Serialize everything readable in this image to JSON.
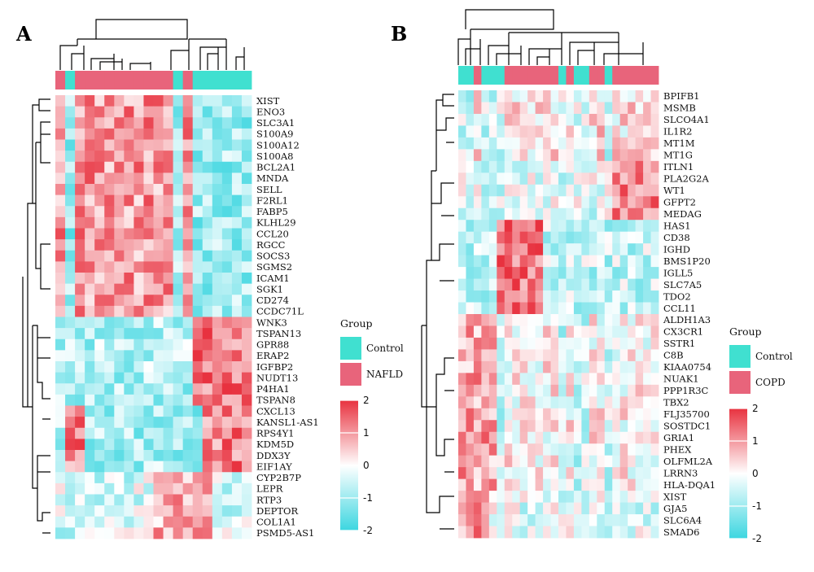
{
  "colors": {
    "control": "#40E0D0",
    "case": "#E8647B",
    "low": "#3CD6E0",
    "mid": "#FFFFFF",
    "high": "#E8323F"
  },
  "chart_data": [
    {
      "type": "heatmap",
      "panel": "A",
      "legend_title": "Group",
      "groups": [
        "Control",
        "NAFLD"
      ],
      "column_groups": [
        "NAFLD",
        "Control",
        "NAFLD",
        "NAFLD",
        "NAFLD",
        "NAFLD",
        "NAFLD",
        "NAFLD",
        "NAFLD",
        "NAFLD",
        "NAFLD",
        "NAFLD",
        "Control",
        "NAFLD",
        "Control",
        "Control",
        "Control",
        "Control",
        "Control",
        "Control"
      ],
      "rows": [
        "XIST",
        "ENO3",
        "SLC3A1",
        "S100A9",
        "S100A12",
        "S100A8",
        "BCL2A1",
        "MNDA",
        "SELL",
        "F2RL1",
        "FABP5",
        "KLHL29",
        "CCL20",
        "RGCC",
        "SOCS3",
        "SGMS2",
        "ICAM1",
        "SGK1",
        "CD274",
        "CCDC71L",
        "WNK3",
        "TSPAN13",
        "GPR88",
        "ERAP2",
        "IGFBP2",
        "NUDT13",
        "P4HA1",
        "TSPAN8",
        "CXCL13",
        "KANSL1-AS1",
        "RPS4Y1",
        "KDM5D",
        "DDX3Y",
        "EIF1AY",
        "CYP2B7P",
        "LEPR",
        "RTP3",
        "DEPTOR",
        "COL1A1",
        "PSMD5-AS1"
      ],
      "color_scale": {
        "min": -2,
        "max": 2,
        "ticks": [
          2,
          1,
          0,
          -1,
          -2
        ]
      }
    },
    {
      "type": "heatmap",
      "panel": "B",
      "legend_title": "Group",
      "groups": [
        "Control",
        "COPD"
      ],
      "column_groups": [
        "Control",
        "Control",
        "COPD",
        "Control",
        "Control",
        "Control",
        "COPD",
        "COPD",
        "COPD",
        "COPD",
        "COPD",
        "COPD",
        "COPD",
        "Control",
        "COPD",
        "Control",
        "Control",
        "COPD",
        "COPD",
        "Control",
        "COPD",
        "COPD",
        "COPD",
        "COPD",
        "COPD",
        "COPD"
      ],
      "rows": [
        "BPIFB1",
        "MSMB",
        "SLCO4A1",
        "IL1R2",
        "MT1M",
        "MT1G",
        "ITLN1",
        "PLA2G2A",
        "WT1",
        "GFPT2",
        "MEDAG",
        "HAS1",
        "CD38",
        "IGHD",
        "BMS1P20",
        "IGLL5",
        "SLC7A5",
        "TDO2",
        "CCL11",
        "ALDH1A3",
        "CX3CR1",
        "SSTR1",
        "C8B",
        "KIAA0754",
        "NUAK1",
        "PPP1R3C",
        "TBX2",
        "FLJ35700",
        "SOSTDC1",
        "GRIA1",
        "PHEX",
        "OLFML2A",
        "LRRN3",
        "HLA-DQA1",
        "XIST",
        "GJA5",
        "SLC6A4",
        "SMAD6"
      ],
      "color_scale": {
        "min": -2,
        "max": 2,
        "ticks": [
          2,
          1,
          0,
          -1,
          -2
        ]
      }
    }
  ]
}
